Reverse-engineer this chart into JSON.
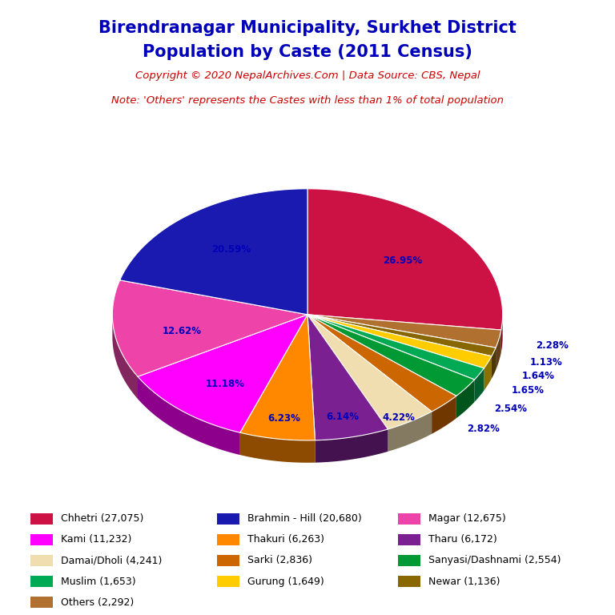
{
  "title_line1": "Birendranagar Municipality, Surkhet District",
  "title_line2": "Population by Caste (2011 Census)",
  "copyright_text": "Copyright © 2020 NepalArchives.Com | Data Source: CBS, Nepal",
  "note_text": "Note: 'Others' represents the Castes with less than 1% of total population",
  "title_color": "#0000bb",
  "copyright_color": "#cc0000",
  "note_color": "#cc0000",
  "label_color": "#0000bb",
  "categories": [
    "Chhetri (27,075)",
    "Brahmin - Hill (20,680)",
    "Magar (12,675)",
    "Kami (11,232)",
    "Thakuri (6,263)",
    "Tharu (6,172)",
    "Damai/Dholi (4,241)",
    "Sarki (2,836)",
    "Sanyasi/Dashnami (2,554)",
    "Muslim (1,653)",
    "Gurung (1,649)",
    "Newar (1,136)",
    "Others (2,292)"
  ],
  "values": [
    27075,
    20680,
    12675,
    11232,
    6263,
    6172,
    4241,
    2836,
    2554,
    1653,
    1649,
    1136,
    2292
  ],
  "percentages": [
    26.95,
    20.59,
    12.62,
    11.18,
    6.23,
    6.14,
    4.22,
    2.82,
    2.54,
    1.65,
    1.64,
    1.13,
    2.28
  ],
  "colors": [
    "#cc1144",
    "#1a1ab0",
    "#ee44aa",
    "#ff00ff",
    "#ff8800",
    "#7a2090",
    "#f0ddb0",
    "#cc6600",
    "#009933",
    "#00aa55",
    "#ffcc00",
    "#886600",
    "#b07030"
  ],
  "legend_colors": [
    "#cc1144",
    "#1a1ab0",
    "#ee44aa",
    "#ff00ff",
    "#ff8800",
    "#7a2090",
    "#f0ddb0",
    "#cc6600",
    "#009933",
    "#00aa55",
    "#ffcc00",
    "#886600",
    "#b07030"
  ],
  "background_color": "#ffffff",
  "yscale": 0.62,
  "depth": 0.11
}
